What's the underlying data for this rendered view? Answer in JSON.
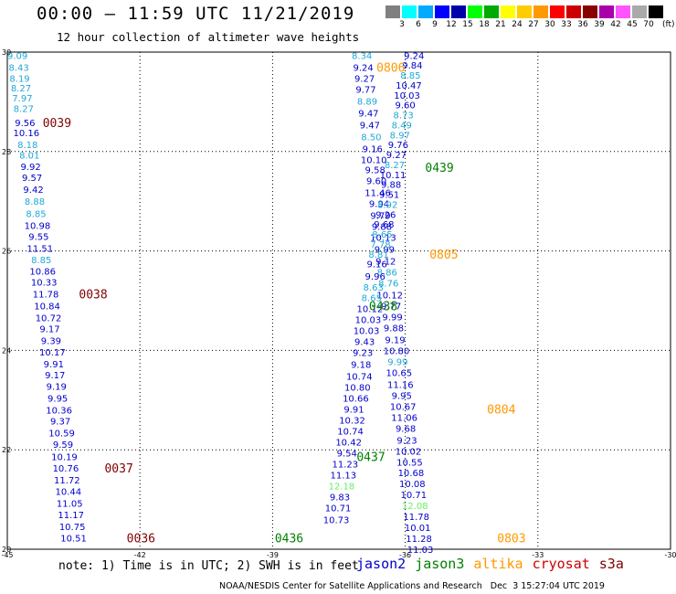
{
  "header": {
    "title": "00:00 – 11:59 UTC 11/21/2019",
    "subtitle": "12 hour collection of altimeter wave heights",
    "unit": "(ft)"
  },
  "colorbar": {
    "colors": [
      "#808080",
      "#00ffff",
      "#00aaff",
      "#0000ff",
      "#0000aa",
      "#00ff00",
      "#00aa00",
      "#ffff00",
      "#ffcc00",
      "#ff9900",
      "#ff0000",
      "#cc0000",
      "#880000",
      "#aa00aa",
      "#ff55ff",
      "#aaaaaa",
      "#000000"
    ],
    "labels": [
      "3",
      "6",
      "9",
      "12",
      "15",
      "18",
      "21",
      "24",
      "27",
      "30",
      "33",
      "36",
      "39",
      "42",
      "45",
      "70"
    ]
  },
  "colors": {
    "jason2": "#0000ff",
    "jason3": "#008000",
    "altika": "#ff9900",
    "cryosat": "#cc0000",
    "s3a": "#800000",
    "light_blue": "#1fa8d8",
    "light_green": "#66ee66"
  },
  "note": "note: 1) Time is in UTC; 2) SWH is in feet",
  "legend": [
    {
      "label": "jason2",
      "color": "#0000cc"
    },
    {
      "label": "jason3",
      "color": "#008000"
    },
    {
      "label": "altika",
      "color": "#ff9900"
    },
    {
      "label": "cryosat",
      "color": "#cc0000"
    },
    {
      "label": "s3a",
      "color": "#800000"
    }
  ],
  "credit": "NOAA/NESDIS Center for Satellite Applications and Research   Dec  3 15:27:04 UTC 2019",
  "chart_data": {
    "type": "scatter",
    "title": "00:00 – 11:59 UTC 11/21/2019",
    "subtitle": "12 hour collection of altimeter wave heights",
    "xlim": [
      -45,
      -30
    ],
    "ylim": [
      20,
      30
    ],
    "xticks": [
      "-45",
      "-42",
      "-39",
      "-36",
      "-33",
      "-30"
    ],
    "yticks": [
      "30",
      "28",
      "26",
      "24",
      "22",
      "20"
    ],
    "xtick_values": [
      -45,
      -42,
      -39,
      -36,
      -33,
      -30
    ],
    "ytick_values": [
      30,
      28,
      26,
      24,
      22,
      20
    ],
    "grid": true,
    "points": [
      {
        "x": -44.77,
        "y": 29.94,
        "v": "9.09",
        "c": "lb"
      },
      {
        "x": -44.74,
        "y": 29.7,
        "v": "8.43",
        "c": "lb"
      },
      {
        "x": -44.72,
        "y": 29.48,
        "v": "8.19",
        "c": "lb"
      },
      {
        "x": -44.69,
        "y": 29.28,
        "v": "8.27",
        "c": "lb"
      },
      {
        "x": -44.66,
        "y": 29.08,
        "v": "7.97",
        "c": "lb"
      },
      {
        "x": -44.63,
        "y": 28.87,
        "v": "8.27",
        "c": "lb"
      },
      {
        "x": -44.6,
        "y": 28.58,
        "v": "9.56",
        "c": "b"
      },
      {
        "x": -44.57,
        "y": 28.38,
        "v": "10.16",
        "c": "b"
      },
      {
        "x": -44.54,
        "y": 28.14,
        "v": "8.18",
        "c": "lb"
      },
      {
        "x": -44.5,
        "y": 27.93,
        "v": "8.01",
        "c": "lb"
      },
      {
        "x": -44.47,
        "y": 27.7,
        "v": "9.92",
        "c": "b"
      },
      {
        "x": -44.44,
        "y": 27.48,
        "v": "9.57",
        "c": "b"
      },
      {
        "x": -44.41,
        "y": 27.24,
        "v": "9.42",
        "c": "b"
      },
      {
        "x": -44.38,
        "y": 27.0,
        "v": "8.88",
        "c": "lb"
      },
      {
        "x": -44.35,
        "y": 26.76,
        "v": "8.85",
        "c": "lb"
      },
      {
        "x": -44.32,
        "y": 26.52,
        "v": "10.98",
        "c": "b"
      },
      {
        "x": -44.29,
        "y": 26.3,
        "v": "9.55",
        "c": "b"
      },
      {
        "x": -44.26,
        "y": 26.06,
        "v": "11.51",
        "c": "b"
      },
      {
        "x": -44.23,
        "y": 25.83,
        "v": "8.85",
        "c": "lb"
      },
      {
        "x": -44.2,
        "y": 25.6,
        "v": "10.86",
        "c": "b"
      },
      {
        "x": -44.17,
        "y": 25.38,
        "v": "10.33",
        "c": "b"
      },
      {
        "x": -44.13,
        "y": 25.14,
        "v": "11.78",
        "c": "b"
      },
      {
        "x": -44.1,
        "y": 24.9,
        "v": "10.84",
        "c": "b"
      },
      {
        "x": -44.07,
        "y": 24.66,
        "v": "10.72",
        "c": "b"
      },
      {
        "x": -44.04,
        "y": 24.44,
        "v": "9.17",
        "c": "b"
      },
      {
        "x": -44.01,
        "y": 24.2,
        "v": "9.39",
        "c": "b"
      },
      {
        "x": -43.98,
        "y": 23.97,
        "v": "10.17",
        "c": "b"
      },
      {
        "x": -43.95,
        "y": 23.73,
        "v": "9.91",
        "c": "b"
      },
      {
        "x": -43.92,
        "y": 23.51,
        "v": "9.17",
        "c": "b"
      },
      {
        "x": -43.89,
        "y": 23.28,
        "v": "9.19",
        "c": "b"
      },
      {
        "x": -43.86,
        "y": 23.04,
        "v": "9.95",
        "c": "b"
      },
      {
        "x": -43.83,
        "y": 22.8,
        "v": "10.36",
        "c": "b"
      },
      {
        "x": -43.8,
        "y": 22.58,
        "v": "9.37",
        "c": "b"
      },
      {
        "x": -43.77,
        "y": 22.34,
        "v": "10.59",
        "c": "b"
      },
      {
        "x": -43.74,
        "y": 22.11,
        "v": "9.59",
        "c": "b"
      },
      {
        "x": -43.71,
        "y": 21.87,
        "v": "10.19",
        "c": "b"
      },
      {
        "x": -43.68,
        "y": 21.64,
        "v": "10.76",
        "c": "b"
      },
      {
        "x": -43.65,
        "y": 21.4,
        "v": "11.72",
        "c": "b"
      },
      {
        "x": -43.62,
        "y": 21.17,
        "v": "10.44",
        "c": "b"
      },
      {
        "x": -43.59,
        "y": 20.93,
        "v": "11.05",
        "c": "b"
      },
      {
        "x": -43.56,
        "y": 20.7,
        "v": "11.17",
        "c": "b"
      },
      {
        "x": -43.53,
        "y": 20.46,
        "v": "10.75",
        "c": "b"
      },
      {
        "x": -43.5,
        "y": 20.23,
        "v": "10.51",
        "c": "b"
      },
      {
        "x": -36.98,
        "y": 29.94,
        "v": "8.34",
        "c": "lb"
      },
      {
        "x": -36.95,
        "y": 29.7,
        "v": "9.24",
        "c": "b"
      },
      {
        "x": -36.92,
        "y": 29.48,
        "v": "9.27",
        "c": "b"
      },
      {
        "x": -36.89,
        "y": 29.26,
        "v": "9.77",
        "c": "b"
      },
      {
        "x": -36.86,
        "y": 29.02,
        "v": "8.89",
        "c": "lb"
      },
      {
        "x": -36.83,
        "y": 28.78,
        "v": "9.47",
        "c": "b"
      },
      {
        "x": -36.8,
        "y": 28.54,
        "v": "9.47",
        "c": "b"
      },
      {
        "x": -36.77,
        "y": 28.3,
        "v": "8.50",
        "c": "lb"
      },
      {
        "x": -36.74,
        "y": 28.06,
        "v": "9.16",
        "c": "b"
      },
      {
        "x": -36.71,
        "y": 27.84,
        "v": "10.10",
        "c": "b"
      },
      {
        "x": -36.68,
        "y": 27.64,
        "v": "9.58",
        "c": "b"
      },
      {
        "x": -36.65,
        "y": 27.42,
        "v": "9.60",
        "c": "b"
      },
      {
        "x": -36.62,
        "y": 27.18,
        "v": "11.46",
        "c": "b"
      },
      {
        "x": -36.59,
        "y": 26.96,
        "v": "9.94",
        "c": "b"
      },
      {
        "x": -36.56,
        "y": 26.72,
        "v": "9.79",
        "c": "b"
      },
      {
        "x": -36.53,
        "y": 26.5,
        "v": "9.88",
        "c": "b"
      },
      {
        "x": -36.5,
        "y": 26.28,
        "v": "10.13",
        "c": "b"
      },
      {
        "x": -36.47,
        "y": 26.04,
        "v": "9.99",
        "c": "b"
      },
      {
        "x": -36.44,
        "y": 25.8,
        "v": "9.12",
        "c": "b"
      },
      {
        "x": -36.41,
        "y": 25.58,
        "v": "8.86",
        "c": "lb"
      },
      {
        "x": -36.38,
        "y": 25.36,
        "v": "8.76",
        "c": "lb"
      },
      {
        "x": -36.35,
        "y": 25.12,
        "v": "10.12",
        "c": "b"
      },
      {
        "x": -36.32,
        "y": 24.9,
        "v": "9.77",
        "c": "b"
      },
      {
        "x": -36.29,
        "y": 24.68,
        "v": "9.99",
        "c": "b"
      },
      {
        "x": -36.26,
        "y": 24.46,
        "v": "9.88",
        "c": "b"
      },
      {
        "x": -36.23,
        "y": 24.22,
        "v": "9.19",
        "c": "b"
      },
      {
        "x": -36.2,
        "y": 24.0,
        "v": "10.80",
        "c": "b"
      },
      {
        "x": -36.17,
        "y": 23.78,
        "v": "9.99",
        "c": "lb"
      },
      {
        "x": -36.14,
        "y": 23.56,
        "v": "10.65",
        "c": "b"
      },
      {
        "x": -36.11,
        "y": 23.32,
        "v": "11.16",
        "c": "b"
      },
      {
        "x": -36.08,
        "y": 23.1,
        "v": "9.95",
        "c": "b"
      },
      {
        "x": -36.05,
        "y": 22.88,
        "v": "10.67",
        "c": "b"
      },
      {
        "x": -36.02,
        "y": 22.66,
        "v": "11.06",
        "c": "b"
      },
      {
        "x": -35.99,
        "y": 22.44,
        "v": "9.68",
        "c": "b"
      },
      {
        "x": -35.96,
        "y": 22.2,
        "v": "9.23",
        "c": "b"
      },
      {
        "x": -35.93,
        "y": 21.98,
        "v": "10.02",
        "c": "b"
      },
      {
        "x": -35.9,
        "y": 21.76,
        "v": "10.55",
        "c": "b"
      },
      {
        "x": -35.87,
        "y": 21.54,
        "v": "10.68",
        "c": "b"
      },
      {
        "x": -35.84,
        "y": 21.32,
        "v": "10.08",
        "c": "b"
      },
      {
        "x": -35.81,
        "y": 21.1,
        "v": "10.71",
        "c": "b"
      },
      {
        "x": -35.78,
        "y": 20.88,
        "v": "12.08",
        "c": "lg"
      },
      {
        "x": -35.75,
        "y": 20.66,
        "v": "11.78",
        "c": "b"
      },
      {
        "x": -35.72,
        "y": 20.44,
        "v": "10.01",
        "c": "b"
      },
      {
        "x": -35.69,
        "y": 20.22,
        "v": "11.28",
        "c": "b"
      },
      {
        "x": -35.66,
        "y": 20.0,
        "v": "11.03",
        "c": "b"
      },
      {
        "x": -35.8,
        "y": 29.94,
        "v": "9.24",
        "c": "b"
      },
      {
        "x": -35.84,
        "y": 29.74,
        "v": "9.84",
        "c": "b"
      },
      {
        "x": -35.88,
        "y": 29.54,
        "v": "8.85",
        "c": "lb"
      },
      {
        "x": -35.92,
        "y": 29.34,
        "v": "10.47",
        "c": "b"
      },
      {
        "x": -35.96,
        "y": 29.14,
        "v": "10.03",
        "c": "b"
      },
      {
        "x": -36.0,
        "y": 28.94,
        "v": "9.60",
        "c": "b"
      },
      {
        "x": -36.04,
        "y": 28.74,
        "v": "8.73",
        "c": "lb"
      },
      {
        "x": -36.08,
        "y": 28.54,
        "v": "8.49",
        "c": "lb"
      },
      {
        "x": -36.12,
        "y": 28.34,
        "v": "8.97",
        "c": "lb"
      },
      {
        "x": -36.16,
        "y": 28.14,
        "v": "9.76",
        "c": "b"
      },
      {
        "x": -36.2,
        "y": 27.94,
        "v": "9.27",
        "c": "b"
      },
      {
        "x": -36.24,
        "y": 27.74,
        "v": "8.27",
        "c": "lb"
      },
      {
        "x": -36.28,
        "y": 27.54,
        "v": "10.11",
        "c": "b"
      },
      {
        "x": -36.32,
        "y": 27.34,
        "v": "9.88",
        "c": "b"
      },
      {
        "x": -36.36,
        "y": 27.14,
        "v": "9.51",
        "c": "b"
      },
      {
        "x": -36.4,
        "y": 26.94,
        "v": "8.92",
        "c": "lb"
      },
      {
        "x": -36.44,
        "y": 26.74,
        "v": "9.26",
        "c": "b"
      },
      {
        "x": -36.48,
        "y": 26.54,
        "v": "9.68",
        "c": "b"
      },
      {
        "x": -36.52,
        "y": 26.34,
        "v": "8.65",
        "c": "lb"
      },
      {
        "x": -36.56,
        "y": 26.14,
        "v": "7.78",
        "c": "lb"
      },
      {
        "x": -36.6,
        "y": 25.94,
        "v": "8.81",
        "c": "lb"
      },
      {
        "x": -36.64,
        "y": 25.74,
        "v": "9.16",
        "c": "b"
      },
      {
        "x": -36.68,
        "y": 25.5,
        "v": "9.96",
        "c": "b"
      },
      {
        "x": -36.72,
        "y": 25.28,
        "v": "8.63",
        "c": "lb"
      },
      {
        "x": -36.76,
        "y": 25.06,
        "v": "8.65",
        "c": "lb"
      },
      {
        "x": -36.8,
        "y": 24.84,
        "v": "10.12",
        "c": "b"
      },
      {
        "x": -36.84,
        "y": 24.62,
        "v": "10.03",
        "c": "b"
      },
      {
        "x": -36.88,
        "y": 24.4,
        "v": "10.03",
        "c": "b"
      },
      {
        "x": -36.92,
        "y": 24.18,
        "v": "9.43",
        "c": "b"
      },
      {
        "x": -36.96,
        "y": 23.96,
        "v": "9.23",
        "c": "b"
      },
      {
        "x": -37.0,
        "y": 23.72,
        "v": "9.18",
        "c": "b"
      },
      {
        "x": -37.04,
        "y": 23.48,
        "v": "10.74",
        "c": "b"
      },
      {
        "x": -37.08,
        "y": 23.26,
        "v": "10.80",
        "c": "b"
      },
      {
        "x": -37.12,
        "y": 23.04,
        "v": "10.66",
        "c": "b"
      },
      {
        "x": -37.16,
        "y": 22.82,
        "v": "9.91",
        "c": "b"
      },
      {
        "x": -37.2,
        "y": 22.6,
        "v": "10.32",
        "c": "b"
      },
      {
        "x": -37.24,
        "y": 22.38,
        "v": "10.74",
        "c": "b"
      },
      {
        "x": -37.28,
        "y": 22.16,
        "v": "10.42",
        "c": "b"
      },
      {
        "x": -37.32,
        "y": 21.94,
        "v": "9.54",
        "c": "b"
      },
      {
        "x": -37.36,
        "y": 21.72,
        "v": "11.23",
        "c": "b"
      },
      {
        "x": -37.4,
        "y": 21.5,
        "v": "11.13",
        "c": "b"
      },
      {
        "x": -37.44,
        "y": 21.28,
        "v": "12.18",
        "c": "lg"
      },
      {
        "x": -37.48,
        "y": 21.06,
        "v": "9.83",
        "c": "b"
      },
      {
        "x": -37.52,
        "y": 20.84,
        "v": "10.71",
        "c": "b"
      },
      {
        "x": -37.56,
        "y": 20.6,
        "v": "10.73",
        "c": "b"
      }
    ],
    "time_tags": [
      {
        "label": "0039",
        "x": -44.2,
        "y": 28.58,
        "color": "s3a"
      },
      {
        "label": "0038",
        "x": -43.38,
        "y": 25.14,
        "color": "s3a"
      },
      {
        "label": "0037",
        "x": -42.8,
        "y": 21.64,
        "color": "s3a"
      },
      {
        "label": "0036",
        "x": -42.3,
        "y": 20.23,
        "color": "s3a"
      },
      {
        "label": "0806",
        "x": -36.65,
        "y": 29.7,
        "color": "altika"
      },
      {
        "label": "0439",
        "x": -35.55,
        "y": 27.68,
        "color": "jason3"
      },
      {
        "label": "0805",
        "x": -35.45,
        "y": 25.94,
        "color": "altika"
      },
      {
        "label": "0438",
        "x": -36.82,
        "y": 24.9,
        "color": "jason3"
      },
      {
        "label": "0804",
        "x": -34.15,
        "y": 22.82,
        "color": "altika"
      },
      {
        "label": "0437",
        "x": -37.1,
        "y": 21.87,
        "color": "jason3"
      },
      {
        "label": "0803",
        "x": -33.92,
        "y": 20.23,
        "color": "altika"
      },
      {
        "label": "0436",
        "x": -38.95,
        "y": 20.23,
        "color": "jason3"
      }
    ]
  }
}
